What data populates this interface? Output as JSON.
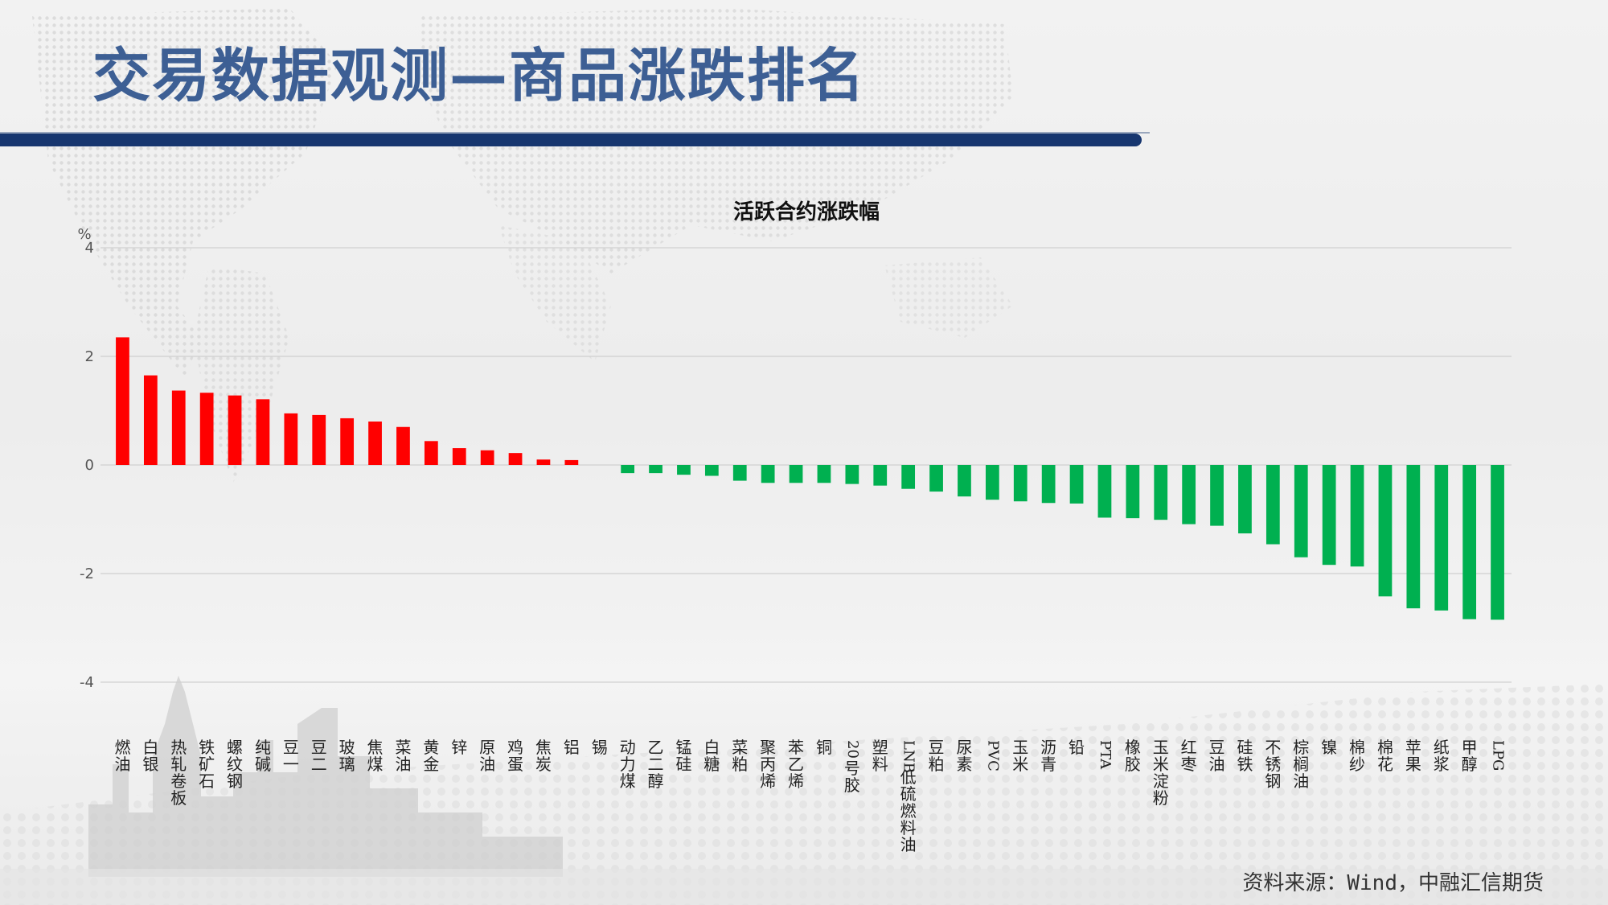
{
  "title": "交易数据观测—商品涨跌排名",
  "source": "资料来源：Wind，中融汇信期货",
  "colors": {
    "title": "#3d5f94",
    "bar": "#17366f",
    "up": "#ff0000",
    "down": "#00b050"
  },
  "chart_data": {
    "type": "bar",
    "title": "活跃合约涨跌幅",
    "ylabel": "%",
    "ylim": [
      -4,
      4
    ],
    "yticks": [
      4,
      2,
      0,
      -2,
      -4
    ],
    "grid": true,
    "categories": [
      "燃油",
      "白银",
      "热轧卷板",
      "铁矿石",
      "螺纹钢",
      "纯碱",
      "豆一",
      "豆二",
      "玻璃",
      "焦煤",
      "菜油",
      "黄金",
      "锌",
      "原油",
      "鸡蛋",
      "焦炭",
      "铝",
      "锡",
      "动力煤",
      "乙二醇",
      "锰硅",
      "白糖",
      "菜粕",
      "聚丙烯",
      "苯乙烯",
      "铜",
      "20号胶",
      "塑料",
      "LNB低硫燃料油",
      "豆粕",
      "尿素",
      "PVC",
      "玉米",
      "沥青",
      "铅",
      "PTA",
      "橡胶",
      "玉米淀粉",
      "红枣",
      "豆油",
      "硅铁",
      "不锈钢",
      "棕榈油",
      "镍",
      "棉纱",
      "棉花",
      "苹果",
      "纸浆",
      "甲醇",
      "LPG"
    ],
    "values": [
      2.35,
      1.65,
      1.37,
      1.33,
      1.28,
      1.21,
      0.95,
      0.92,
      0.86,
      0.8,
      0.7,
      0.44,
      0.31,
      0.27,
      0.22,
      0.1,
      0.09,
      0.0,
      -0.15,
      -0.15,
      -0.18,
      -0.2,
      -0.29,
      -0.33,
      -0.33,
      -0.33,
      -0.35,
      -0.38,
      -0.44,
      -0.49,
      -0.58,
      -0.64,
      -0.67,
      -0.7,
      -0.71,
      -0.97,
      -0.98,
      -1.01,
      -1.09,
      -1.12,
      -1.26,
      -1.46,
      -1.7,
      -1.84,
      -1.87,
      -2.42,
      -2.64,
      -2.68,
      -2.84,
      -2.85
    ]
  }
}
